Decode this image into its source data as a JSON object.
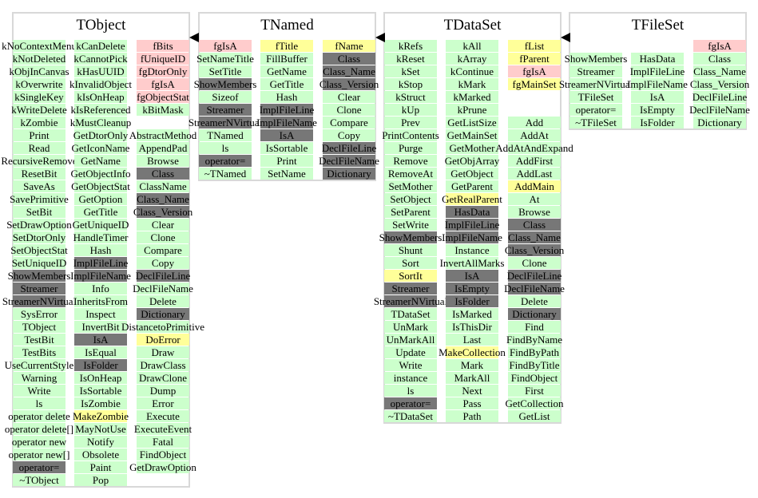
{
  "colors": {
    "g": "#ccffcc",
    "p": "#ffcccc",
    "y": "#ffff99",
    "d": "#777777"
  },
  "classes": [
    {
      "title": "TObject",
      "columns": [
        [
          [
            "kNoContextMenu",
            "g"
          ],
          [
            "kNotDeleted",
            "g"
          ],
          [
            "kObjInCanvas",
            "g"
          ],
          [
            "kOverwrite",
            "g"
          ],
          [
            "kSingleKey",
            "g"
          ],
          [
            "kWriteDelete",
            "g"
          ],
          [
            "kZombie",
            "g"
          ],
          [
            "Print",
            "g"
          ],
          [
            "Read",
            "g"
          ],
          [
            "RecursiveRemove",
            "g"
          ],
          [
            "ResetBit",
            "g"
          ],
          [
            "SaveAs",
            "g"
          ],
          [
            "SavePrimitive",
            "g"
          ],
          [
            "SetBit",
            "g"
          ],
          [
            "SetDrawOption",
            "g"
          ],
          [
            "SetDtorOnly",
            "g"
          ],
          [
            "SetObjectStat",
            "g"
          ],
          [
            "SetUniqueID",
            "g"
          ],
          [
            "ShowMembers",
            "d"
          ],
          [
            "Streamer",
            "d"
          ],
          [
            "StreamerNVirtual",
            "d"
          ],
          [
            "SysError",
            "g"
          ],
          [
            "TObject",
            "g"
          ],
          [
            "TestBit",
            "g"
          ],
          [
            "TestBits",
            "g"
          ],
          [
            "UseCurrentStyle",
            "g"
          ],
          [
            "Warning",
            "g"
          ],
          [
            "Write",
            "g"
          ],
          [
            "ls",
            "g"
          ],
          [
            "operator delete",
            "g"
          ],
          [
            "operator delete[]",
            "g"
          ],
          [
            "operator new",
            "g"
          ],
          [
            "operator new[]",
            "g"
          ],
          [
            "operator=",
            "d"
          ],
          [
            "~TObject",
            "g"
          ]
        ],
        [
          [
            "kCanDelete",
            "g"
          ],
          [
            "kCannotPick",
            "g"
          ],
          [
            "kHasUUID",
            "g"
          ],
          [
            "kInvalidObject",
            "g"
          ],
          [
            "kIsOnHeap",
            "g"
          ],
          [
            "kIsReferenced",
            "g"
          ],
          [
            "kMustCleanup",
            "g"
          ],
          [
            "GetDtorOnly",
            "g"
          ],
          [
            "GetIconName",
            "g"
          ],
          [
            "GetName",
            "g"
          ],
          [
            "GetObjectInfo",
            "g"
          ],
          [
            "GetObjectStat",
            "g"
          ],
          [
            "GetOption",
            "g"
          ],
          [
            "GetTitle",
            "g"
          ],
          [
            "GetUniqueID",
            "g"
          ],
          [
            "HandleTimer",
            "g"
          ],
          [
            "Hash",
            "g"
          ],
          [
            "ImplFileLine",
            "d"
          ],
          [
            "ImplFileName",
            "d"
          ],
          [
            "Info",
            "g"
          ],
          [
            "InheritsFrom",
            "g"
          ],
          [
            "Inspect",
            "g"
          ],
          [
            "InvertBit",
            "g"
          ],
          [
            "IsA",
            "d"
          ],
          [
            "IsEqual",
            "g"
          ],
          [
            "IsFolder",
            "d"
          ],
          [
            "IsOnHeap",
            "g"
          ],
          [
            "IsSortable",
            "g"
          ],
          [
            "IsZombie",
            "g"
          ],
          [
            "MakeZombie",
            "y"
          ],
          [
            "MayNotUse",
            "g"
          ],
          [
            "Notify",
            "g"
          ],
          [
            "Obsolete",
            "g"
          ],
          [
            "Paint",
            "g"
          ],
          [
            "Pop",
            "g"
          ]
        ],
        [
          [
            "fBits",
            "p"
          ],
          [
            "fUniqueID",
            "p"
          ],
          [
            "fgDtorOnly",
            "p"
          ],
          [
            "fgIsA",
            "p"
          ],
          [
            "fgObjectStat",
            "p"
          ],
          [
            "kBitMask",
            "g"
          ],
          [
            "",
            ""
          ],
          [
            "AbstractMethod",
            "g"
          ],
          [
            "AppendPad",
            "g"
          ],
          [
            "Browse",
            "g"
          ],
          [
            "Class",
            "d"
          ],
          [
            "ClassName",
            "g"
          ],
          [
            "Class_Name",
            "d"
          ],
          [
            "Class_Version",
            "d"
          ],
          [
            "Clear",
            "g"
          ],
          [
            "Clone",
            "g"
          ],
          [
            "Compare",
            "g"
          ],
          [
            "Copy",
            "g"
          ],
          [
            "DeclFileLine",
            "d"
          ],
          [
            "DeclFileName",
            "g"
          ],
          [
            "Delete",
            "g"
          ],
          [
            "Dictionary",
            "d"
          ],
          [
            "DistancetoPrimitive",
            "g"
          ],
          [
            "DoError",
            "y"
          ],
          [
            "Draw",
            "g"
          ],
          [
            "DrawClass",
            "g"
          ],
          [
            "DrawClone",
            "g"
          ],
          [
            "Dump",
            "g"
          ],
          [
            "Error",
            "g"
          ],
          [
            "Execute",
            "g"
          ],
          [
            "ExecuteEvent",
            "g"
          ],
          [
            "Fatal",
            "g"
          ],
          [
            "FindObject",
            "g"
          ],
          [
            "GetDrawOption",
            "g"
          ]
        ]
      ]
    },
    {
      "title": "TNamed",
      "columns": [
        [
          [
            "fgIsA",
            "p"
          ],
          [
            "SetNameTitle",
            "g"
          ],
          [
            "SetTitle",
            "g"
          ],
          [
            "ShowMembers",
            "d"
          ],
          [
            "Sizeof",
            "g"
          ],
          [
            "Streamer",
            "d"
          ],
          [
            "StreamerNVirtual",
            "d"
          ],
          [
            "TNamed",
            "g"
          ],
          [
            "ls",
            "g"
          ],
          [
            "operator=",
            "d"
          ],
          [
            "~TNamed",
            "g"
          ]
        ],
        [
          [
            "fTitle",
            "y"
          ],
          [
            "FillBuffer",
            "g"
          ],
          [
            "GetName",
            "g"
          ],
          [
            "GetTitle",
            "g"
          ],
          [
            "Hash",
            "g"
          ],
          [
            "ImplFileLine",
            "d"
          ],
          [
            "ImplFileName",
            "d"
          ],
          [
            "IsA",
            "d"
          ],
          [
            "IsSortable",
            "g"
          ],
          [
            "Print",
            "g"
          ],
          [
            "SetName",
            "g"
          ]
        ],
        [
          [
            "fName",
            "y"
          ],
          [
            "Class",
            "d"
          ],
          [
            "Class_Name",
            "d"
          ],
          [
            "Class_Version",
            "d"
          ],
          [
            "Clear",
            "g"
          ],
          [
            "Clone",
            "g"
          ],
          [
            "Compare",
            "g"
          ],
          [
            "Copy",
            "g"
          ],
          [
            "DeclFileLine",
            "d"
          ],
          [
            "DeclFileName",
            "d"
          ],
          [
            "Dictionary",
            "d"
          ]
        ]
      ]
    },
    {
      "title": "TDataSet",
      "columns": [
        [
          [
            "kRefs",
            "g"
          ],
          [
            "kReset",
            "g"
          ],
          [
            "kSet",
            "g"
          ],
          [
            "kStop",
            "g"
          ],
          [
            "kStruct",
            "g"
          ],
          [
            "kUp",
            "g"
          ],
          [
            "Prev",
            "g"
          ],
          [
            "PrintContents",
            "g"
          ],
          [
            "Purge",
            "g"
          ],
          [
            "Remove",
            "g"
          ],
          [
            "RemoveAt",
            "g"
          ],
          [
            "SetMother",
            "g"
          ],
          [
            "SetObject",
            "g"
          ],
          [
            "SetParent",
            "g"
          ],
          [
            "SetWrite",
            "g"
          ],
          [
            "ShowMembers",
            "d"
          ],
          [
            "Shunt",
            "g"
          ],
          [
            "Sort",
            "g"
          ],
          [
            "SortIt",
            "y"
          ],
          [
            "Streamer",
            "d"
          ],
          [
            "StreamerNVirtual",
            "d"
          ],
          [
            "TDataSet",
            "g"
          ],
          [
            "UnMark",
            "g"
          ],
          [
            "UnMarkAll",
            "g"
          ],
          [
            "Update",
            "g"
          ],
          [
            "Write",
            "g"
          ],
          [
            "instance",
            "g"
          ],
          [
            "ls",
            "g"
          ],
          [
            "operator=",
            "d"
          ],
          [
            "~TDataSet",
            "g"
          ]
        ],
        [
          [
            "kAll",
            "g"
          ],
          [
            "kArray",
            "g"
          ],
          [
            "kContinue",
            "g"
          ],
          [
            "kMark",
            "g"
          ],
          [
            "kMarked",
            "g"
          ],
          [
            "kPrune",
            "g"
          ],
          [
            "GetListSize",
            "g"
          ],
          [
            "GetMainSet",
            "g"
          ],
          [
            "GetMother",
            "g"
          ],
          [
            "GetObjArray",
            "g"
          ],
          [
            "GetObject",
            "g"
          ],
          [
            "GetParent",
            "g"
          ],
          [
            "GetRealParent",
            "y"
          ],
          [
            "HasData",
            "d"
          ],
          [
            "ImplFileLine",
            "d"
          ],
          [
            "ImplFileName",
            "d"
          ],
          [
            "Instance",
            "g"
          ],
          [
            "InvertAllMarks",
            "g"
          ],
          [
            "IsA",
            "d"
          ],
          [
            "IsEmpty",
            "d"
          ],
          [
            "IsFolder",
            "d"
          ],
          [
            "IsMarked",
            "g"
          ],
          [
            "IsThisDir",
            "g"
          ],
          [
            "Last",
            "g"
          ],
          [
            "MakeCollection",
            "y"
          ],
          [
            "Mark",
            "g"
          ],
          [
            "MarkAll",
            "g"
          ],
          [
            "Next",
            "g"
          ],
          [
            "Pass",
            "g"
          ],
          [
            "Path",
            "g"
          ]
        ],
        [
          [
            "fList",
            "y"
          ],
          [
            "fParent",
            "y"
          ],
          [
            "fgIsA",
            "p"
          ],
          [
            "fgMainSet",
            "y"
          ],
          [
            "",
            ""
          ],
          [
            "",
            ""
          ],
          [
            "Add",
            "g"
          ],
          [
            "AddAt",
            "g"
          ],
          [
            "AddAtAndExpand",
            "g"
          ],
          [
            "AddFirst",
            "g"
          ],
          [
            "AddLast",
            "g"
          ],
          [
            "AddMain",
            "y"
          ],
          [
            "At",
            "g"
          ],
          [
            "Browse",
            "g"
          ],
          [
            "Class",
            "d"
          ],
          [
            "Class_Name",
            "d"
          ],
          [
            "Class_Version",
            "d"
          ],
          [
            "Clone",
            "g"
          ],
          [
            "DeclFileLine",
            "d"
          ],
          [
            "DeclFileName",
            "d"
          ],
          [
            "Delete",
            "g"
          ],
          [
            "Dictionary",
            "d"
          ],
          [
            "Find",
            "g"
          ],
          [
            "FindByName",
            "g"
          ],
          [
            "FindByPath",
            "g"
          ],
          [
            "FindByTitle",
            "g"
          ],
          [
            "FindObject",
            "g"
          ],
          [
            "First",
            "g"
          ],
          [
            "GetCollection",
            "g"
          ],
          [
            "GetList",
            "g"
          ]
        ]
      ]
    },
    {
      "title": "TFileSet",
      "columns": [
        [
          [
            "",
            ""
          ],
          [
            "ShowMembers",
            "g"
          ],
          [
            "Streamer",
            "g"
          ],
          [
            "StreamerNVirtual",
            "g"
          ],
          [
            "TFileSet",
            "g"
          ],
          [
            "operator=",
            "g"
          ],
          [
            "~TFileSet",
            "g"
          ]
        ],
        [
          [
            "",
            ""
          ],
          [
            "HasData",
            "g"
          ],
          [
            "ImplFileLine",
            "g"
          ],
          [
            "ImplFileName",
            "g"
          ],
          [
            "IsA",
            "g"
          ],
          [
            "IsEmpty",
            "g"
          ],
          [
            "IsFolder",
            "g"
          ]
        ],
        [
          [
            "fgIsA",
            "p"
          ],
          [
            "Class",
            "g"
          ],
          [
            "Class_Name",
            "g"
          ],
          [
            "Class_Version",
            "g"
          ],
          [
            "DeclFileLine",
            "g"
          ],
          [
            "DeclFileName",
            "g"
          ],
          [
            "Dictionary",
            "g"
          ]
        ]
      ]
    }
  ]
}
